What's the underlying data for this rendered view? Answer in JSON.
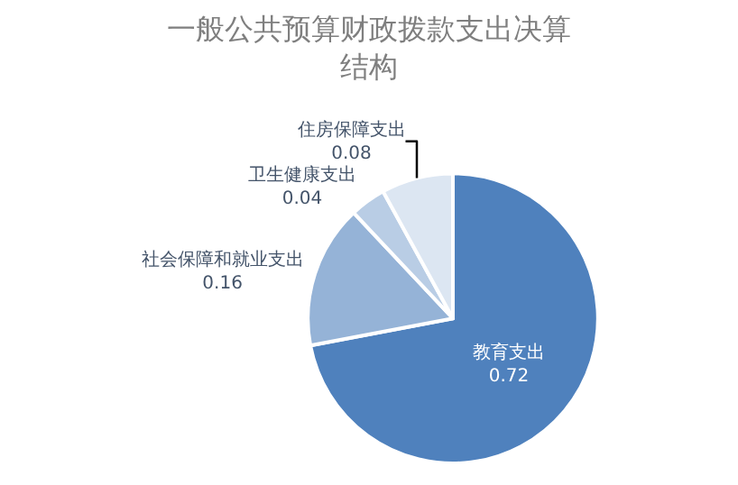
{
  "chart_data": {
    "type": "pie",
    "title": "一般公共预算财政拨款支出决算结构",
    "categories": [
      "教育支出",
      "社会保障和就业支出",
      "卫生健康支出",
      "住房保障支出"
    ],
    "values": [
      0.72,
      0.16,
      0.04,
      0.08
    ],
    "colors": [
      "#4f81bd",
      "#95b3d7",
      "#b9cde5",
      "#dce6f2"
    ],
    "data_labels": true,
    "legend": false
  }
}
